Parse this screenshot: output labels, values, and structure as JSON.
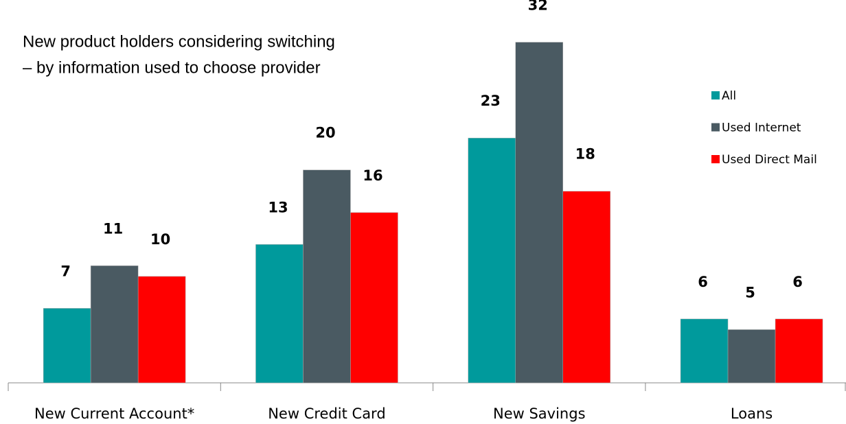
{
  "chart_data": {
    "type": "bar",
    "title": "New product holders considering switching",
    "subtitle": "–   by information used to choose provider",
    "categories": [
      "New Current Account*",
      "New Credit Card",
      "New Savings",
      "Loans"
    ],
    "series": [
      {
        "name": "All",
        "color": "#009a9c",
        "values": [
          7,
          13,
          23,
          6
        ]
      },
      {
        "name": "Used Internet",
        "color": "#4a5a62",
        "values": [
          11,
          20,
          32,
          5
        ]
      },
      {
        "name": "Used Direct Mail",
        "color": "#ff0000",
        "values": [
          10,
          16,
          18,
          6
        ]
      }
    ],
    "ylim": [
      0,
      35
    ],
    "legend": "upper right"
  }
}
